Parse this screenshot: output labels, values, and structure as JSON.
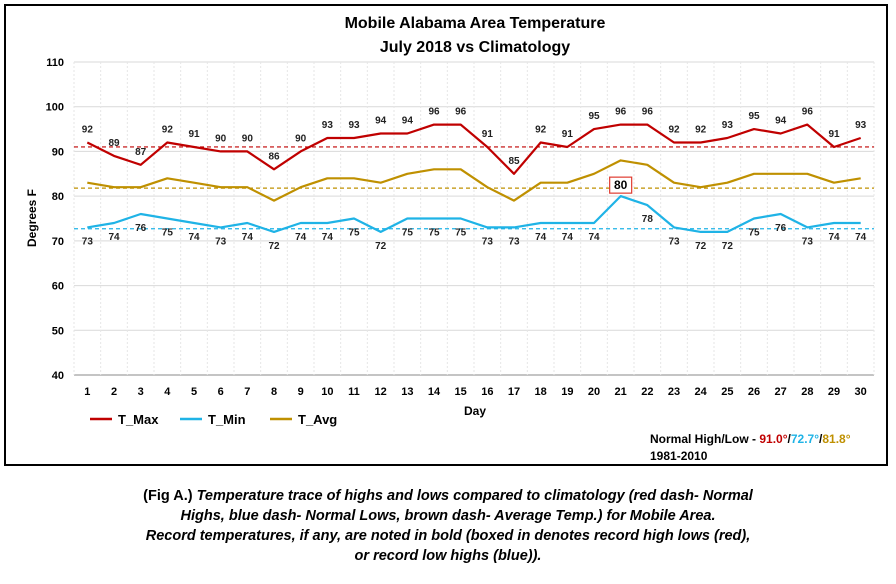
{
  "chart_data": {
    "type": "line",
    "title_line1": "Mobile Alabama Area Temperature",
    "title_line2": "July 2018 vs Climatology",
    "xlabel": "Day",
    "ylabel": "Degrees F",
    "ylim": [
      40,
      110
    ],
    "yticks": [
      40,
      50,
      60,
      70,
      80,
      90,
      100,
      110
    ],
    "x": [
      1,
      2,
      3,
      4,
      5,
      6,
      7,
      8,
      9,
      10,
      11,
      12,
      13,
      14,
      15,
      16,
      17,
      18,
      19,
      20,
      21,
      22,
      23,
      24,
      25,
      26,
      27,
      28,
      29,
      30
    ],
    "series": [
      {
        "name": "T_Max",
        "color": "#c00000",
        "values": [
          92,
          89,
          87,
          92,
          91,
          90,
          90,
          86,
          90,
          93,
          93,
          94,
          94,
          96,
          96,
          91,
          85,
          92,
          91,
          95,
          96,
          96,
          92,
          92,
          93,
          95,
          94,
          96,
          91,
          93
        ]
      },
      {
        "name": "T_Min",
        "color": "#1fb3e6",
        "values": [
          73,
          74,
          76,
          75,
          74,
          73,
          74,
          72,
          74,
          74,
          75,
          72,
          75,
          75,
          75,
          73,
          73,
          74,
          74,
          74,
          80,
          78,
          73,
          72,
          72,
          75,
          76,
          73,
          74,
          74
        ]
      },
      {
        "name": "T_Avg",
        "color": "#bf9000",
        "values": [
          83,
          82,
          82,
          84,
          83,
          82,
          82,
          79,
          82,
          84,
          84,
          83,
          85,
          86,
          86,
          82,
          79,
          83,
          83,
          85,
          88,
          87,
          83,
          82,
          83,
          85,
          85,
          85,
          83,
          84
        ]
      }
    ],
    "normals": {
      "high": {
        "value": 91.0,
        "color": "#c00000"
      },
      "low": {
        "value": 72.7,
        "color": "#1fb3e6"
      },
      "avg": {
        "value": 81.8,
        "color": "#bf9000"
      }
    },
    "record_boxes": [
      {
        "day": 21,
        "series": "T_Min",
        "value": 80,
        "box_color": "#e03c31"
      }
    ],
    "grid": true,
    "legend_position": "bottom-left"
  },
  "normal_note": {
    "prefix": "Normal High/Low - ",
    "high_text": "91.0°",
    "sep1": "/",
    "low_text": "72.7°",
    "sep2": "/",
    "avg_text": "81.8°",
    "period": "1981-2010"
  },
  "caption": {
    "lead": "(Fig A.)",
    "line1": " Temperature trace of highs and lows compared to climatology (red dash- Normal",
    "line2": "Highs, blue dash- Normal Lows, brown dash- Average Temp.) for Mobile Area.",
    "line3": "Record temperatures, if any, are noted in bold (boxed in denotes record high lows (red),",
    "line4": "or record low highs (blue))."
  }
}
